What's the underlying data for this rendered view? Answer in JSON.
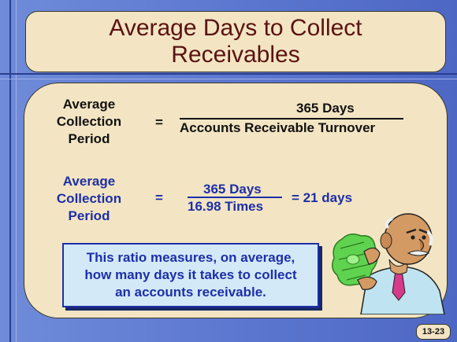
{
  "title": {
    "line1": "Average Days to Collect",
    "line2": "Receivables"
  },
  "formula": {
    "term_lines": [
      "Average",
      "Collection",
      "Period"
    ],
    "equals": "=",
    "numerator": "365 Days",
    "denominator": "Accounts Receivable Turnover"
  },
  "calculation": {
    "term_lines": [
      "Average",
      "Collection",
      "Period"
    ],
    "equals": "=",
    "numerator": "365 Days",
    "denominator": "16.98 Times",
    "result": "=  21 days"
  },
  "note": {
    "lines": [
      "This ratio measures, on average,",
      "how many days it takes to collect",
      "an accounts receivable."
    ]
  },
  "slide_number": "13-23",
  "colors": {
    "background": "#5b76cf",
    "panel": "#f3e5c3",
    "title_text": "#5a1212",
    "accent_blue": "#1d2fa8",
    "note_fill": "#d3e9f7"
  },
  "icons": {
    "character": "man-holding-cash-illustration"
  }
}
